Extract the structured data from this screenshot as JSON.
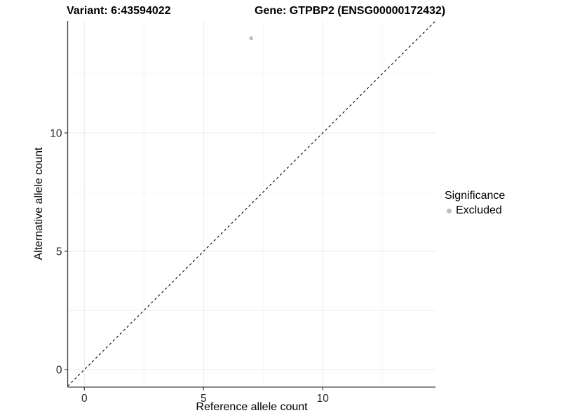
{
  "chart_data": {
    "type": "scatter",
    "title_parts": [
      "Variant: 6:43594022",
      "Gene: GTPBP2 (ENSG00000172432)"
    ],
    "xlabel": "Reference allele count",
    "ylabel": "Alternative allele count",
    "xlim": [
      -0.7,
      14.73
    ],
    "ylim": [
      -0.74,
      14.73
    ],
    "x_major_ticks": [
      0,
      5,
      10
    ],
    "y_major_ticks": [
      0,
      5,
      10
    ],
    "x_minor_gridlines": [
      2.5,
      7.5,
      12.5
    ],
    "y_minor_gridlines": [
      2.5,
      7.5,
      12.5
    ],
    "grid": "major and minor gridlines on white background",
    "series": [
      {
        "name": "Excluded",
        "color": "#bdbdbd",
        "points": [
          {
            "x": 7,
            "y": 14
          }
        ]
      }
    ],
    "reference_line": {
      "kind": "identity y=x",
      "style": "dashed",
      "color": "#000000"
    },
    "legend": {
      "title": "Significance",
      "position": "right",
      "items": [
        {
          "label": "Excluded",
          "color": "#bdbdbd"
        }
      ]
    }
  },
  "colors": {
    "background": "#ffffff",
    "axis_line": "#404040",
    "tick_label": "#262626",
    "major_gridline": "#e9e9e9",
    "minor_gridline": "#f4f4f4",
    "point": "#bdbdbd",
    "dashed_line": "#000000"
  }
}
